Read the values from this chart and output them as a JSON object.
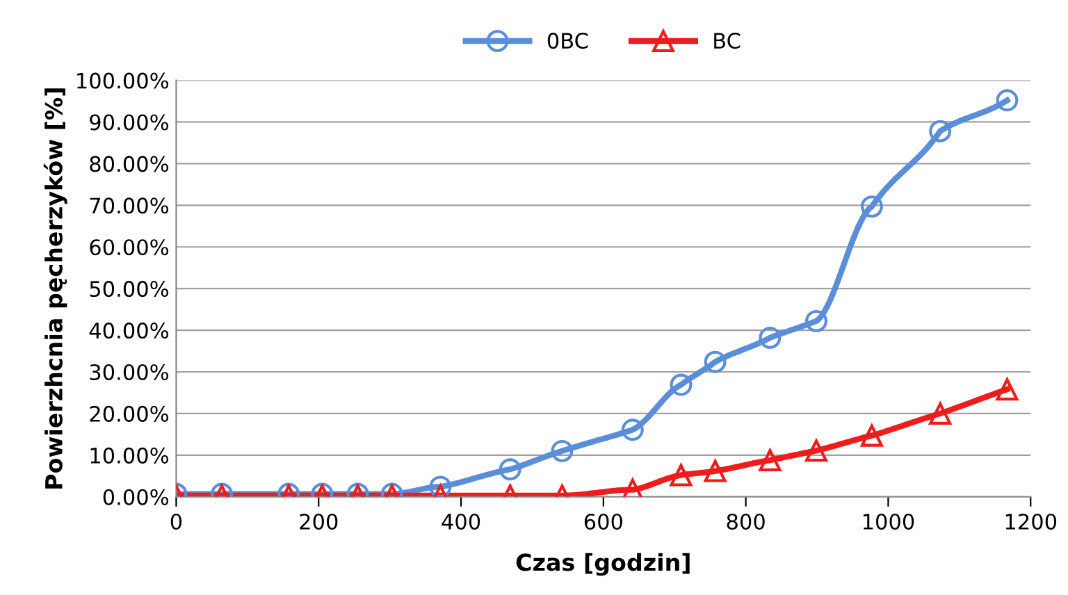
{
  "chart_data": {
    "type": "line",
    "xlabel": "Czas [godzin]",
    "ylabel": "Powierzhcnia pęcherzyków [%]",
    "x": [
      0,
      64,
      158,
      205,
      255,
      303,
      371,
      469,
      542,
      641,
      709,
      757,
      834,
      899,
      977,
      1073,
      1167
    ],
    "series": [
      {
        "name": "0BC",
        "color": "#5b8ed8",
        "marker": "circle",
        "values": [
          0.7,
          0.7,
          0.7,
          0.7,
          0.7,
          0.7,
          2.4,
          6.6,
          11,
          16.1,
          26.9,
          32.4,
          38.2,
          42.2,
          69.7,
          87.8,
          95.2
        ]
      },
      {
        "name": "BC",
        "color": "#ee1c1c",
        "marker": "triangle",
        "values": [
          0.3,
          0.3,
          0.3,
          0.3,
          0.3,
          0.3,
          0.3,
          0.3,
          0.3,
          1.7,
          5.2,
          6.2,
          8.8,
          11.1,
          14.7,
          20,
          25.8
        ]
      }
    ],
    "xlim": [
      0,
      1200
    ],
    "xticks": [
      0,
      200,
      400,
      600,
      800,
      1000,
      1200
    ],
    "ylim": [
      0,
      100
    ],
    "yticks": [
      {
        "value": 0,
        "label": "0.00%"
      },
      {
        "value": 10,
        "label": "10.00%"
      },
      {
        "value": 20,
        "label": "20.00%"
      },
      {
        "value": 30,
        "label": "30.00%"
      },
      {
        "value": 40,
        "label": "40.00%"
      },
      {
        "value": 50,
        "label": "50.00%"
      },
      {
        "value": 60,
        "label": "60.00%"
      },
      {
        "value": 70,
        "label": "70.00%"
      },
      {
        "value": 80,
        "label": "80.00%"
      },
      {
        "value": 90,
        "label": "90.00%"
      },
      {
        "value": 100,
        "label": "100.00%"
      }
    ],
    "grid": "y",
    "legend": "top",
    "line_style": "solid"
  }
}
